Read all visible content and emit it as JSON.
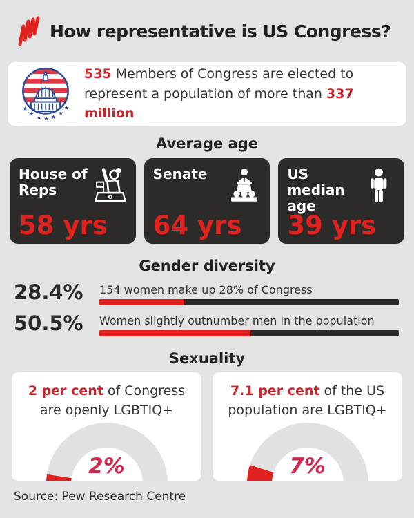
{
  "page": {
    "title": "How representative is US Congress?",
    "source": "Source: Pew Research Centre",
    "colors": {
      "background": "#e4e3e3",
      "red": "#e0231e",
      "red_text": "#c9252b",
      "crimson": "#d12a4e",
      "dark": "#2d2a2a",
      "gauge_gray": "#e2e1e1",
      "capitol_blue": "#2c4b97",
      "capitol_red": "#de3a45"
    }
  },
  "intro": {
    "icon": "us-capitol-icon",
    "bold1": "535",
    "text1": " Members of Congress are elected to represent a population of more than ",
    "bold2": "337 million"
  },
  "average_age": {
    "heading": "Average age",
    "cards": [
      {
        "label": "House of Reps",
        "value": "58 yrs",
        "icon": "person-raising-hand-icon"
      },
      {
        "label": "Senate",
        "value": "64 yrs",
        "icon": "speaker-at-podium-icon"
      },
      {
        "label": "US median age",
        "value": "39 yrs",
        "icon": "standing-person-icon"
      }
    ]
  },
  "gender": {
    "heading": "Gender diversity",
    "rows": [
      {
        "value": "28.4%",
        "pct": 28.4,
        "label": "154 women make up 28% of Congress"
      },
      {
        "value": "50.5%",
        "pct": 50.5,
        "label": "Women slightly outnumber men in the population"
      }
    ]
  },
  "sexuality": {
    "heading": "Sexuality",
    "cards": [
      {
        "lead": "2 per cent",
        "rest": " of Congress are openly LGBTIQ+",
        "pct": 2,
        "gauge_label": "2%"
      },
      {
        "lead": "7.1 per cent",
        "rest": " of the US population are LGBTIQ+",
        "pct": 7.1,
        "gauge_label": "7%"
      }
    ]
  },
  "chart_data": [
    {
      "type": "table",
      "title": "Average age",
      "categories": [
        "House of Reps",
        "Senate",
        "US median age"
      ],
      "values": [
        58,
        64,
        39
      ],
      "unit": "yrs"
    },
    {
      "type": "bar",
      "title": "Gender diversity",
      "categories": [
        "Women in Congress",
        "Women in US population"
      ],
      "values": [
        28.4,
        50.5
      ],
      "unit": "%",
      "xlim": [
        0,
        100
      ],
      "annotations": [
        "154 women make up 28% of Congress",
        "Women slightly outnumber men in the population"
      ],
      "bar_colors": [
        "#e0231e on #2d2a2a track"
      ]
    },
    {
      "type": "pie",
      "subtype": "half-donut-gauge",
      "title": "Sexuality",
      "series": [
        {
          "name": "Congress openly LGBTIQ+",
          "value": 2,
          "label": "2%"
        },
        {
          "name": "US population LGBTIQ+",
          "value": 7.1,
          "label": "7%"
        }
      ],
      "unit": "%"
    }
  ]
}
